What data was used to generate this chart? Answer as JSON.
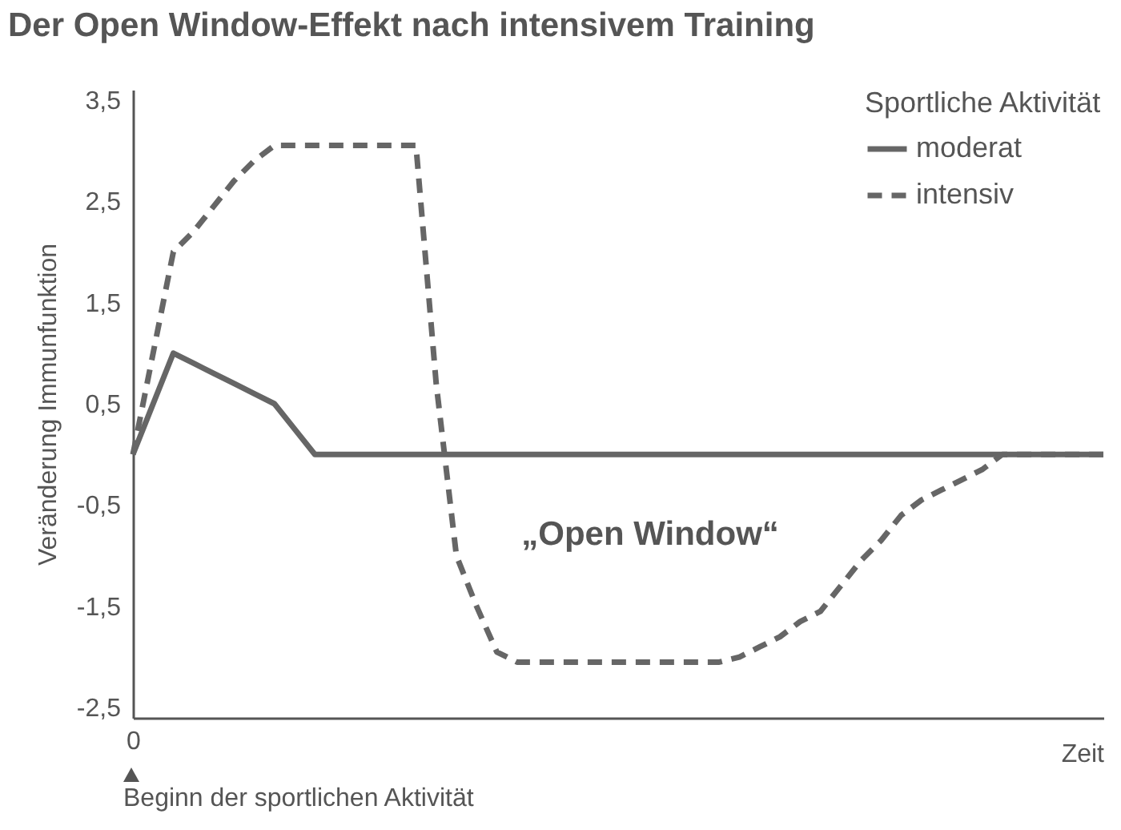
{
  "chart_data": {
    "type": "line",
    "title": "Der Open Window-Effekt nach intensivem Training",
    "ylabel": "Veränderung Immunfunktion",
    "xlabel": "Zeit",
    "legend_title": "Sportliche Aktivität",
    "legend": "top right",
    "grid": false,
    "marker": "none",
    "categories": [
      "0",
      null,
      null,
      null,
      null,
      null,
      null,
      null,
      null,
      null,
      null,
      null,
      null,
      null,
      null,
      null,
      null,
      null,
      null,
      null,
      null,
      null,
      null,
      null,
      null,
      null,
      null,
      null,
      null,
      null,
      null,
      null,
      null,
      null,
      null,
      null,
      null,
      null,
      null,
      null,
      null,
      null,
      null,
      null,
      null,
      null,
      null,
      null,
      null
    ],
    "ylim": [
      -2.6,
      3.6
    ],
    "yticks": [
      {
        "value": 3.5,
        "label": "3,5"
      },
      {
        "value": 2.5,
        "label": "2,5"
      },
      {
        "value": 1.5,
        "label": "1,5"
      },
      {
        "value": 0.5,
        "label": "0,5"
      },
      {
        "value": -0.5,
        "label": "-0,5"
      },
      {
        "value": -1.5,
        "label": "-1,5"
      },
      {
        "value": -2.5,
        "label": "-2,5"
      }
    ],
    "series": [
      {
        "name": "moderat",
        "color": "#666666",
        "line_style": "solid",
        "values": [
          0,
          0.5,
          1.0,
          0.9,
          0.8,
          0.7,
          0.6,
          0.5,
          0.25,
          0,
          0,
          0,
          0,
          0,
          0,
          0,
          0,
          0,
          0,
          0,
          0,
          0,
          0,
          0,
          0,
          0,
          0,
          0,
          0,
          0,
          0,
          0,
          0,
          0,
          0,
          0,
          0,
          0,
          0,
          0,
          0,
          0,
          0,
          0,
          0,
          0,
          0,
          0,
          0
        ]
      },
      {
        "name": "intensiv",
        "color": "#666666",
        "line_style": "dashed",
        "values": [
          0,
          1.0,
          2.0,
          2.2,
          2.45,
          2.7,
          2.9,
          3.05,
          3.05,
          3.05,
          3.05,
          3.05,
          3.05,
          3.05,
          3.05,
          0.7,
          -1.0,
          -1.5,
          -1.95,
          -2.05,
          -2.05,
          -2.05,
          -2.05,
          -2.05,
          -2.05,
          -2.05,
          -2.05,
          -2.05,
          -2.05,
          -2.05,
          -2.0,
          -1.9,
          -1.8,
          -1.65,
          -1.55,
          -1.3,
          -1.05,
          -0.85,
          -0.6,
          -0.45,
          -0.35,
          -0.25,
          -0.15,
          0,
          0,
          0,
          0,
          0,
          0
        ]
      }
    ],
    "annotations": [
      "„Open Window“",
      "Beginn der sportlichen Aktivität"
    ]
  }
}
